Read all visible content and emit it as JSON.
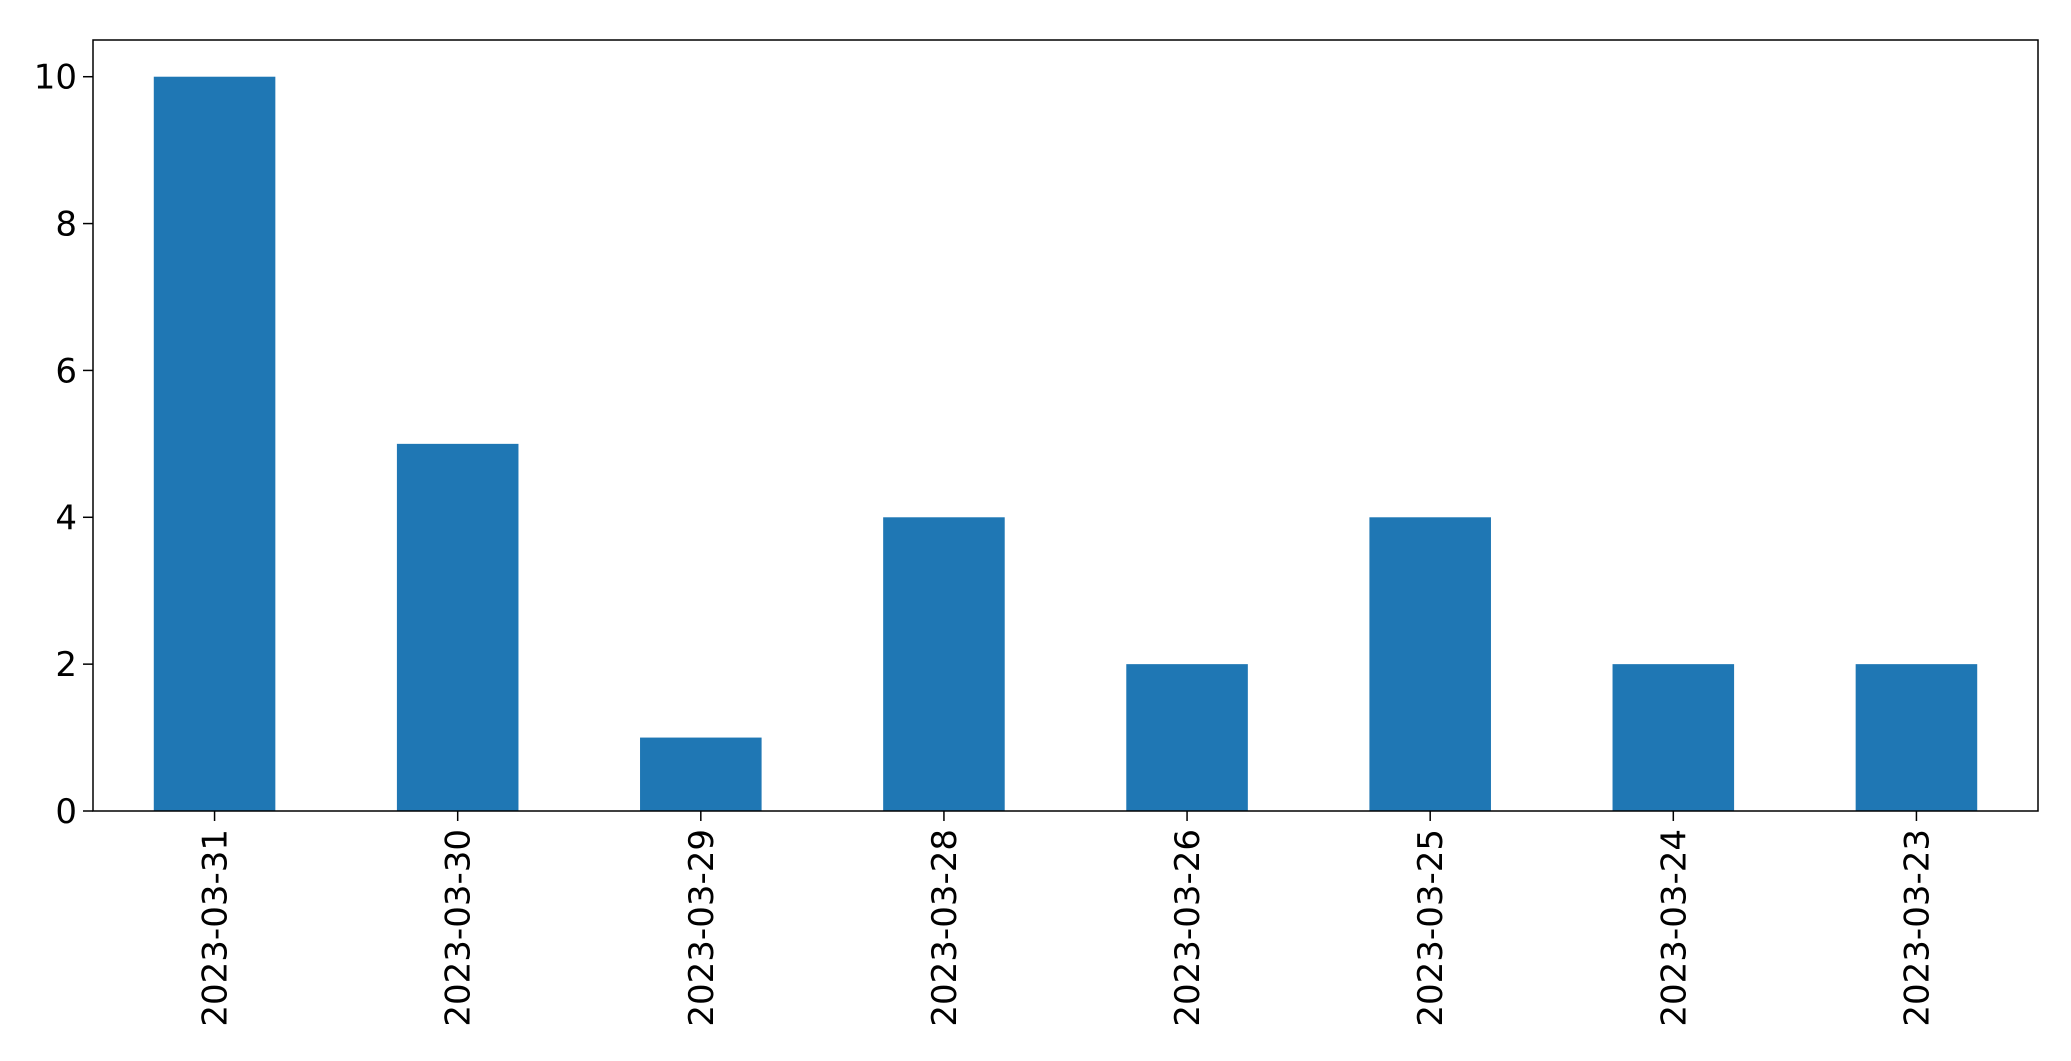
{
  "chart_data": {
    "type": "bar",
    "categories": [
      "2023-03-31",
      "2023-03-30",
      "2023-03-29",
      "2023-03-28",
      "2023-03-26",
      "2023-03-25",
      "2023-03-24",
      "2023-03-23"
    ],
    "values": [
      10,
      5,
      1,
      4,
      2,
      4,
      2,
      2
    ],
    "title": "",
    "xlabel": "",
    "ylabel": "",
    "ylim": [
      0,
      10.5
    ],
    "yticks": [
      0,
      2,
      4,
      6,
      8,
      10
    ],
    "grid": false,
    "legend": "none",
    "bar_color": "#1f77b4",
    "x_tick_rotation": "vertical"
  }
}
